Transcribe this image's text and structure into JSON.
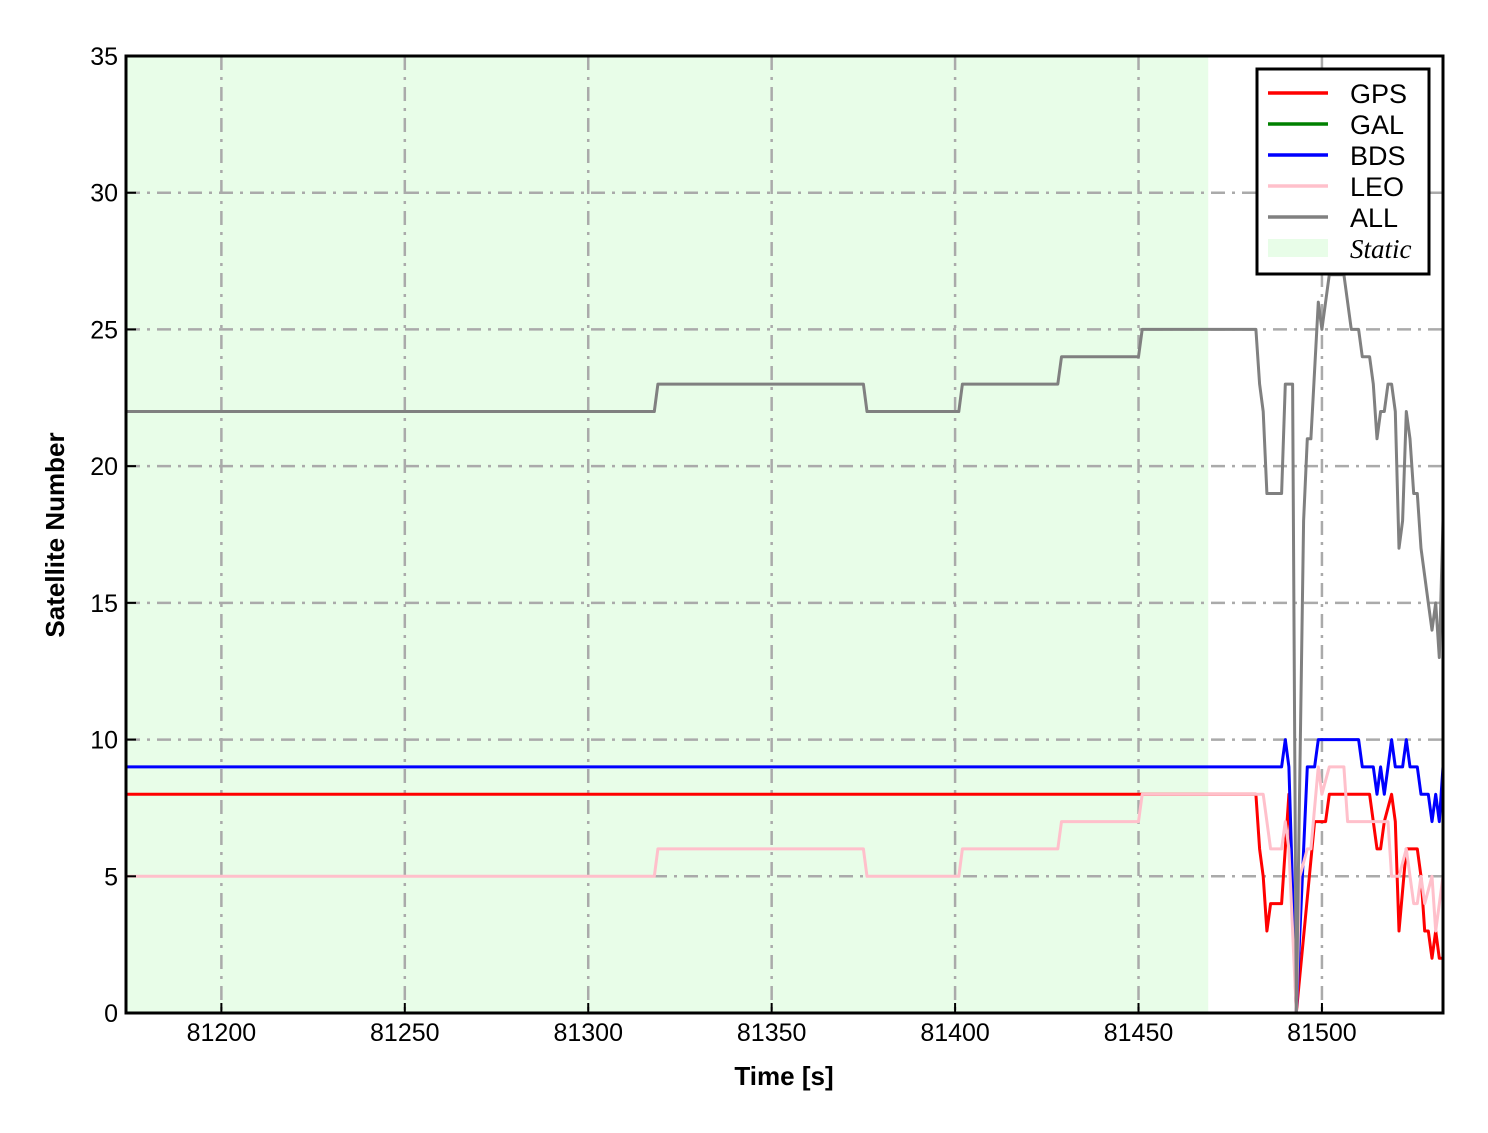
{
  "chart_data": {
    "type": "line",
    "title": "",
    "xlabel": "Time [s]",
    "ylabel": "Satellite Number",
    "xlim": [
      81174,
      81533
    ],
    "ylim": [
      0,
      35
    ],
    "xticks": [
      81200,
      81250,
      81300,
      81350,
      81400,
      81450,
      81500
    ],
    "yticks": [
      0,
      5,
      10,
      15,
      20,
      25,
      30,
      35
    ],
    "grid": true,
    "grid_style": "dash-dot",
    "legend_placement": "top-right",
    "shaded_regions": [
      {
        "name": "Static",
        "x": [
          81174,
          81469
        ],
        "color": "#e8fde8"
      }
    ],
    "series": [
      {
        "name": "GPS",
        "color": "#ff0000",
        "points": [
          [
            81174,
            8
          ],
          [
            81482,
            8
          ],
          [
            81483,
            6
          ],
          [
            81484,
            5
          ],
          [
            81485,
            3
          ],
          [
            81486,
            4
          ],
          [
            81489,
            4
          ],
          [
            81491,
            8
          ],
          [
            81493,
            0
          ],
          [
            81498,
            7
          ],
          [
            81501,
            7
          ],
          [
            81502,
            8
          ],
          [
            81513,
            8
          ],
          [
            81515,
            6
          ],
          [
            81516,
            6
          ],
          [
            81517,
            7
          ],
          [
            81519,
            8
          ],
          [
            81520,
            7
          ],
          [
            81521,
            3
          ],
          [
            81523,
            6
          ],
          [
            81526,
            6
          ],
          [
            81527,
            5
          ],
          [
            81528,
            3
          ],
          [
            81529,
            3
          ],
          [
            81530,
            2
          ],
          [
            81531,
            3
          ],
          [
            81532,
            2
          ],
          [
            81533,
            2
          ]
        ]
      },
      {
        "name": "GAL",
        "color": "#008000",
        "points": [
          [
            81174,
            0
          ],
          [
            81533,
            0
          ]
        ]
      },
      {
        "name": "BDS",
        "color": "#0000ff",
        "points": [
          [
            81174,
            9
          ],
          [
            81489,
            9
          ],
          [
            81490,
            10
          ],
          [
            81491,
            9
          ],
          [
            81493,
            0
          ],
          [
            81496,
            9
          ],
          [
            81498,
            9
          ],
          [
            81499,
            10
          ],
          [
            81510,
            10
          ],
          [
            81511,
            9
          ],
          [
            81514,
            9
          ],
          [
            81515,
            8
          ],
          [
            81516,
            9
          ],
          [
            81517,
            8
          ],
          [
            81518,
            9
          ],
          [
            81519,
            10
          ],
          [
            81520,
            9
          ],
          [
            81522,
            9
          ],
          [
            81523,
            10
          ],
          [
            81524,
            9
          ],
          [
            81526,
            9
          ],
          [
            81527,
            8
          ],
          [
            81529,
            8
          ],
          [
            81530,
            7
          ],
          [
            81531,
            8
          ],
          [
            81532,
            7
          ],
          [
            81533,
            9
          ]
        ]
      },
      {
        "name": "LEO",
        "color": "#ffc0cb",
        "points": [
          [
            81174,
            5
          ],
          [
            81318,
            5
          ],
          [
            81319,
            6
          ],
          [
            81375,
            6
          ],
          [
            81376,
            5
          ],
          [
            81401,
            5
          ],
          [
            81402,
            6
          ],
          [
            81428,
            6
          ],
          [
            81429,
            7
          ],
          [
            81450,
            7
          ],
          [
            81451,
            8
          ],
          [
            81484,
            8
          ],
          [
            81486,
            6
          ],
          [
            81489,
            6
          ],
          [
            81490,
            7
          ],
          [
            81491,
            6
          ],
          [
            81493,
            0
          ],
          [
            81494,
            5
          ],
          [
            81496,
            6
          ],
          [
            81497,
            6
          ],
          [
            81499,
            9
          ],
          [
            81500,
            8
          ],
          [
            81502,
            9
          ],
          [
            81506,
            9
          ],
          [
            81507,
            7
          ],
          [
            81518,
            7
          ],
          [
            81519,
            5
          ],
          [
            81521,
            5
          ],
          [
            81523,
            6
          ],
          [
            81525,
            4
          ],
          [
            81526,
            4
          ],
          [
            81527,
            5
          ],
          [
            81528,
            4
          ],
          [
            81530,
            5
          ],
          [
            81531,
            3
          ],
          [
            81533,
            5
          ]
        ]
      },
      {
        "name": "ALL",
        "color": "#808080",
        "points": [
          [
            81174,
            22
          ],
          [
            81318,
            22
          ],
          [
            81319,
            23
          ],
          [
            81375,
            23
          ],
          [
            81376,
            22
          ],
          [
            81401,
            22
          ],
          [
            81402,
            23
          ],
          [
            81428,
            23
          ],
          [
            81429,
            24
          ],
          [
            81450,
            24
          ],
          [
            81451,
            25
          ],
          [
            81482,
            25
          ],
          [
            81483,
            23
          ],
          [
            81484,
            22
          ],
          [
            81485,
            19
          ],
          [
            81489,
            19
          ],
          [
            81490,
            23
          ],
          [
            81492,
            23
          ],
          [
            81493,
            0
          ],
          [
            81495,
            18
          ],
          [
            81496,
            21
          ],
          [
            81497,
            21
          ],
          [
            81499,
            26
          ],
          [
            81500,
            25
          ],
          [
            81502,
            27
          ],
          [
            81506,
            27
          ],
          [
            81508,
            25
          ],
          [
            81510,
            25
          ],
          [
            81511,
            24
          ],
          [
            81513,
            24
          ],
          [
            81514,
            23
          ],
          [
            81515,
            21
          ],
          [
            81516,
            22
          ],
          [
            81517,
            22
          ],
          [
            81518,
            23
          ],
          [
            81519,
            23
          ],
          [
            81520,
            22
          ],
          [
            81521,
            17
          ],
          [
            81522,
            18
          ],
          [
            81523,
            22
          ],
          [
            81524,
            21
          ],
          [
            81525,
            19
          ],
          [
            81526,
            19
          ],
          [
            81527,
            17
          ],
          [
            81529,
            15
          ],
          [
            81530,
            14
          ],
          [
            81531,
            15
          ],
          [
            81532,
            13
          ],
          [
            81533,
            18
          ]
        ]
      }
    ],
    "legend": [
      "GPS",
      "GAL",
      "BDS",
      "LEO",
      "ALL",
      "Static"
    ]
  }
}
